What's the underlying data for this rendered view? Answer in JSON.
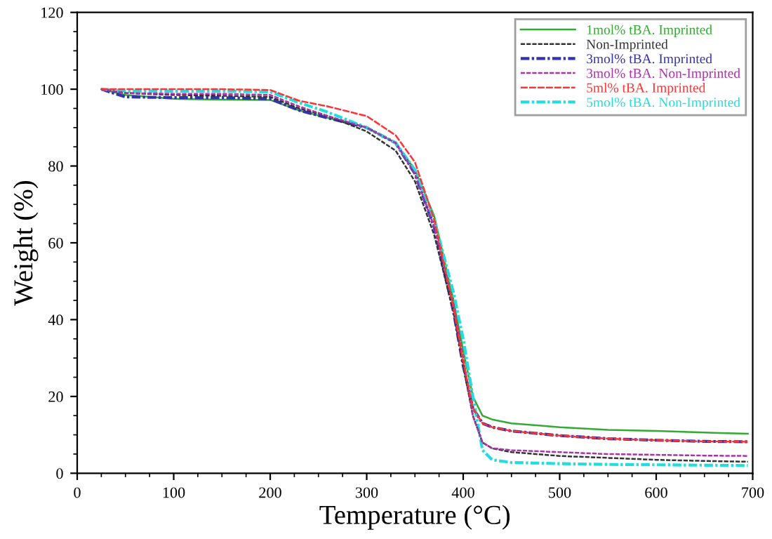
{
  "chart_data": {
    "type": "line",
    "xlabel": "Temperature (°C)",
    "ylabel": "Weight (%)",
    "x": [
      25,
      50,
      100,
      150,
      200,
      230,
      260,
      300,
      330,
      350,
      370,
      390,
      400,
      410,
      420,
      430,
      450,
      500,
      550,
      600,
      650,
      695
    ],
    "series": [
      {
        "name": "1mol% tBA. Imprinted",
        "color": "#33aa33",
        "line_style": "solid",
        "values": [
          100,
          98.5,
          97.5,
          97.3,
          97.2,
          94.5,
          92.5,
          90,
          86,
          79,
          67,
          45,
          32,
          20,
          15,
          14,
          13,
          12,
          11.3,
          11,
          10.6,
          10.3
        ]
      },
      {
        "name": "Non-Imprinted",
        "color": "#333333",
        "line_style": "dashed",
        "values": [
          100,
          99,
          98.5,
          98.3,
          98,
          95,
          93,
          89,
          84,
          76,
          62,
          42,
          28,
          15,
          8,
          6.5,
          5.5,
          4.5,
          4,
          3.5,
          3.2,
          3
        ]
      },
      {
        "name": "3mol% tBA. Imprinted",
        "color": "#3333aa",
        "line_style": "dashdot",
        "values": [
          100,
          98,
          97.8,
          97.8,
          97.5,
          94.5,
          92.5,
          90,
          86,
          78,
          64,
          42,
          28,
          17,
          13,
          12,
          11,
          9.8,
          9,
          8.6,
          8.3,
          8.2
        ]
      },
      {
        "name": "3mol% tBA. Non-Imprinted",
        "color": "#aa33aa",
        "line_style": "dashed",
        "values": [
          100,
          99,
          98.8,
          98.8,
          98.5,
          95.5,
          93,
          90,
          86,
          78,
          64,
          44,
          30,
          15,
          8,
          6.5,
          6,
          5.5,
          5,
          4.8,
          4.6,
          4.5
        ]
      },
      {
        "name": "5ml% tBA. Imprinted",
        "color": "#ff3333",
        "line_style": "longdash",
        "values": [
          100,
          100,
          100,
          100,
          99.8,
          97,
          95.5,
          93,
          88,
          81,
          66,
          43,
          29,
          17,
          13,
          12,
          11,
          9.8,
          9,
          8.6,
          8.3,
          8.2
        ]
      },
      {
        "name": "5mol% tBA. Non-Imprinted",
        "color": "#22dddd",
        "line_style": "dashdot",
        "values": [
          100,
          99.5,
          99.5,
          99.5,
          99.3,
          96.5,
          94,
          90,
          86,
          79,
          66,
          47,
          35,
          20,
          6,
          3.5,
          2.8,
          2.5,
          2.3,
          2.2,
          2.1,
          2
        ]
      }
    ],
    "xlim": [
      0,
      700
    ],
    "xticks": [
      0,
      100,
      200,
      300,
      400,
      500,
      600,
      700
    ],
    "ylim": [
      0,
      120
    ],
    "yticks": [
      0,
      20,
      40,
      60,
      80,
      100,
      120
    ],
    "legend": "top right",
    "grid": false
  }
}
